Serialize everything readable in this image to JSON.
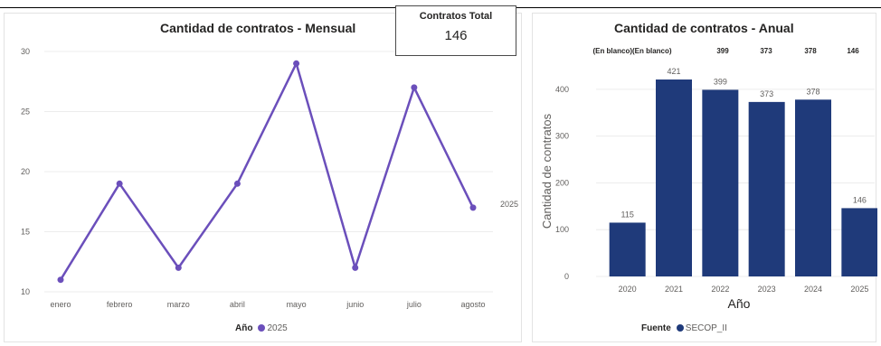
{
  "kpi": {
    "label": "Contratos Total",
    "value": "146"
  },
  "chart_data": [
    {
      "type": "line",
      "title": "Cantidad de contratos - Mensual",
      "categories": [
        "enero",
        "febrero",
        "marzo",
        "abril",
        "mayo",
        "junio",
        "julio",
        "agosto"
      ],
      "series": [
        {
          "name": "2025",
          "values": [
            11,
            19,
            12,
            19,
            29,
            12,
            27,
            17
          ],
          "color": "#6b4fbb"
        }
      ],
      "yticks": [
        10,
        15,
        20,
        25,
        30
      ],
      "ylim": [
        10,
        30
      ],
      "grid": true,
      "legend": {
        "title": "Año",
        "position": "bottom",
        "entries": [
          "2025"
        ]
      }
    },
    {
      "type": "bar",
      "title": "Cantidad de contratos - Anual",
      "categories": [
        "2020",
        "2021",
        "2022",
        "2023",
        "2024",
        "2025"
      ],
      "values": [
        115,
        421,
        399,
        373,
        378,
        146
      ],
      "data_labels": [
        "115",
        "421",
        "399",
        "373",
        "378",
        "146"
      ],
      "top_labels": [
        "(En blanco)(En blanco)",
        "399",
        "373",
        "378",
        "146"
      ],
      "xlabel": "Año",
      "ylabel": "Cantidad de contratos",
      "yticks": [
        0,
        100,
        200,
        300,
        400
      ],
      "ylim": [
        0,
        450
      ],
      "grid": true,
      "color": "#1f3a7a",
      "legend": {
        "title": "Fuente",
        "position": "bottom",
        "entries": [
          "SECOP_II"
        ]
      }
    }
  ]
}
